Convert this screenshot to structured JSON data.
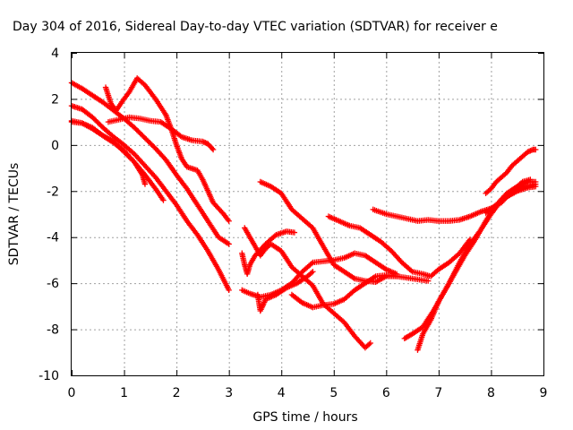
{
  "chart_data": {
    "type": "scatter",
    "title": "Day 304 of 2016, Sidereal Day-to-day VTEC variation (SDTVAR) for receiver e",
    "xlabel": "GPS time / hours",
    "ylabel": "SDTVAR / TECUs",
    "xlim": [
      0,
      9
    ],
    "ylim": [
      -10,
      4
    ],
    "xticks": [
      "0",
      "1",
      "2",
      "3",
      "4",
      "5",
      "6",
      "7",
      "8",
      "9"
    ],
    "yticks": [
      "-10",
      "-8",
      "-6",
      "-4",
      "-2",
      "0",
      "2",
      "4"
    ],
    "grid": true,
    "marker": "plus",
    "colors": {
      "series": "#ff0000",
      "axis": "#000000",
      "grid": "#a0a0a0"
    },
    "series": [
      {
        "points": [
          [
            0.0,
            2.7
          ],
          [
            0.2,
            2.45
          ],
          [
            0.4,
            2.15
          ],
          [
            0.6,
            1.85
          ],
          [
            0.8,
            1.5
          ],
          [
            1.0,
            1.15
          ],
          [
            1.2,
            0.75
          ],
          [
            1.4,
            0.3
          ],
          [
            1.6,
            -0.15
          ],
          [
            1.8,
            -0.65
          ],
          [
            2.0,
            -1.3
          ],
          [
            2.2,
            -1.9
          ],
          [
            2.4,
            -2.6
          ],
          [
            2.6,
            -3.3
          ],
          [
            2.8,
            -4.0
          ],
          [
            3.0,
            -4.3
          ]
        ]
      },
      {
        "points": [
          [
            0.0,
            1.7
          ],
          [
            0.2,
            1.55
          ],
          [
            0.4,
            1.2
          ],
          [
            0.6,
            0.75
          ],
          [
            0.8,
            0.35
          ],
          [
            1.0,
            0.0
          ],
          [
            1.2,
            -0.4
          ],
          [
            1.4,
            -0.9
          ],
          [
            1.6,
            -1.4
          ],
          [
            1.8,
            -2.0
          ],
          [
            2.0,
            -2.6
          ],
          [
            2.2,
            -3.3
          ],
          [
            2.4,
            -3.9
          ],
          [
            2.6,
            -4.6
          ],
          [
            2.8,
            -5.4
          ],
          [
            3.0,
            -6.3
          ]
        ]
      },
      {
        "points": [
          [
            0.0,
            1.0
          ],
          [
            0.2,
            0.95
          ],
          [
            0.4,
            0.7
          ],
          [
            0.6,
            0.4
          ],
          [
            0.8,
            0.15
          ],
          [
            1.0,
            -0.3
          ],
          [
            1.2,
            -0.75
          ],
          [
            1.35,
            -1.3
          ],
          [
            1.4,
            -1.7
          ]
        ]
      },
      {
        "points": [
          [
            0.0,
            1.05
          ],
          [
            0.2,
            0.95
          ],
          [
            0.4,
            0.75
          ],
          [
            0.6,
            0.4
          ],
          [
            0.8,
            0.1
          ],
          [
            1.0,
            -0.25
          ],
          [
            1.2,
            -0.75
          ],
          [
            1.4,
            -1.3
          ],
          [
            1.6,
            -1.9
          ],
          [
            1.75,
            -2.4
          ]
        ]
      },
      {
        "points": [
          [
            0.65,
            2.5
          ],
          [
            0.75,
            1.8
          ],
          [
            0.85,
            1.5
          ],
          [
            1.0,
            2.0
          ],
          [
            1.1,
            2.3
          ],
          [
            1.25,
            2.9
          ],
          [
            1.4,
            2.6
          ],
          [
            1.6,
            2.0
          ],
          [
            1.8,
            1.3
          ],
          [
            1.9,
            0.7
          ],
          [
            2.0,
            0.0
          ],
          [
            2.1,
            -0.6
          ],
          [
            2.2,
            -0.95
          ],
          [
            2.4,
            -1.1
          ],
          [
            2.5,
            -1.5
          ],
          [
            2.7,
            -2.5
          ],
          [
            2.9,
            -3.0
          ],
          [
            3.0,
            -3.3
          ]
        ]
      },
      {
        "points": [
          [
            0.7,
            1.0
          ],
          [
            0.9,
            1.1
          ],
          [
            1.1,
            1.2
          ],
          [
            1.3,
            1.15
          ],
          [
            1.5,
            1.05
          ],
          [
            1.7,
            1.0
          ],
          [
            1.9,
            0.7
          ],
          [
            2.1,
            0.35
          ],
          [
            2.3,
            0.2
          ],
          [
            2.5,
            0.15
          ],
          [
            2.6,
            0.05
          ],
          [
            2.7,
            -0.2
          ]
        ]
      },
      {
        "points": [
          [
            3.25,
            -4.7
          ],
          [
            3.3,
            -5.2
          ],
          [
            3.35,
            -5.6
          ],
          [
            3.4,
            -5.2
          ],
          [
            3.5,
            -4.8
          ],
          [
            3.7,
            -4.3
          ],
          [
            3.9,
            -3.9
          ],
          [
            4.1,
            -3.75
          ],
          [
            4.25,
            -3.8
          ]
        ]
      },
      {
        "points": [
          [
            3.3,
            -3.6
          ],
          [
            3.4,
            -4.0
          ],
          [
            3.5,
            -4.4
          ],
          [
            3.6,
            -4.8
          ],
          [
            3.7,
            -4.5
          ],
          [
            3.8,
            -4.3
          ],
          [
            4.0,
            -4.6
          ],
          [
            4.2,
            -5.3
          ],
          [
            4.4,
            -5.7
          ],
          [
            4.6,
            -6.1
          ],
          [
            4.8,
            -6.9
          ],
          [
            5.0,
            -7.3
          ],
          [
            5.2,
            -7.7
          ],
          [
            5.4,
            -8.3
          ],
          [
            5.6,
            -8.8
          ],
          [
            5.7,
            -8.6
          ]
        ]
      },
      {
        "points": [
          [
            3.25,
            -6.3
          ],
          [
            3.4,
            -6.45
          ],
          [
            3.6,
            -6.6
          ],
          [
            3.8,
            -6.5
          ],
          [
            4.0,
            -6.3
          ],
          [
            4.2,
            -6.0
          ],
          [
            4.4,
            -5.5
          ],
          [
            4.6,
            -5.1
          ],
          [
            4.8,
            -5.05
          ],
          [
            5.0,
            -5.0
          ],
          [
            5.2,
            -4.9
          ],
          [
            5.4,
            -4.7
          ],
          [
            5.6,
            -4.8
          ],
          [
            5.8,
            -5.1
          ],
          [
            6.0,
            -5.4
          ],
          [
            6.2,
            -5.6
          ]
        ]
      },
      {
        "points": [
          [
            3.55,
            -6.5
          ],
          [
            3.6,
            -7.2
          ],
          [
            3.7,
            -6.7
          ],
          [
            3.9,
            -6.5
          ],
          [
            4.1,
            -6.2
          ],
          [
            4.3,
            -6.0
          ],
          [
            4.5,
            -5.7
          ],
          [
            4.6,
            -5.5
          ]
        ]
      },
      {
        "points": [
          [
            3.6,
            -1.6
          ],
          [
            3.8,
            -1.8
          ],
          [
            4.0,
            -2.1
          ],
          [
            4.2,
            -2.8
          ],
          [
            4.4,
            -3.2
          ],
          [
            4.6,
            -3.6
          ],
          [
            4.8,
            -4.4
          ],
          [
            5.0,
            -5.2
          ],
          [
            5.2,
            -5.5
          ],
          [
            5.4,
            -5.8
          ],
          [
            5.6,
            -5.9
          ],
          [
            5.8,
            -5.95
          ],
          [
            6.0,
            -5.7
          ],
          [
            6.2,
            -5.7
          ]
        ]
      },
      {
        "points": [
          [
            4.2,
            -6.5
          ],
          [
            4.4,
            -6.85
          ],
          [
            4.6,
            -7.05
          ],
          [
            4.8,
            -6.95
          ],
          [
            5.0,
            -6.9
          ],
          [
            5.2,
            -6.7
          ],
          [
            5.4,
            -6.3
          ],
          [
            5.6,
            -6.0
          ],
          [
            5.8,
            -5.7
          ],
          [
            6.0,
            -5.65
          ],
          [
            6.2,
            -5.7
          ],
          [
            6.5,
            -5.8
          ],
          [
            6.8,
            -5.9
          ]
        ]
      },
      {
        "points": [
          [
            4.9,
            -3.1
          ],
          [
            5.1,
            -3.3
          ],
          [
            5.3,
            -3.5
          ],
          [
            5.5,
            -3.6
          ],
          [
            5.7,
            -3.9
          ],
          [
            5.9,
            -4.2
          ],
          [
            6.1,
            -4.6
          ],
          [
            6.3,
            -5.1
          ],
          [
            6.5,
            -5.5
          ],
          [
            6.7,
            -5.6
          ],
          [
            6.85,
            -5.7
          ],
          [
            7.0,
            -5.4
          ],
          [
            7.2,
            -5.1
          ],
          [
            7.4,
            -4.7
          ],
          [
            7.6,
            -4.1
          ]
        ]
      },
      {
        "points": [
          [
            5.75,
            -2.8
          ],
          [
            6.0,
            -3.0
          ],
          [
            6.2,
            -3.1
          ],
          [
            6.4,
            -3.2
          ],
          [
            6.6,
            -3.3
          ],
          [
            6.8,
            -3.25
          ],
          [
            7.0,
            -3.3
          ],
          [
            7.2,
            -3.3
          ],
          [
            7.4,
            -3.25
          ],
          [
            7.6,
            -3.1
          ],
          [
            7.8,
            -2.9
          ],
          [
            8.0,
            -2.75
          ],
          [
            8.2,
            -2.5
          ],
          [
            8.4,
            -2.0
          ],
          [
            8.6,
            -1.6
          ],
          [
            8.75,
            -1.5
          ]
        ]
      },
      {
        "points": [
          [
            6.35,
            -8.4
          ],
          [
            6.5,
            -8.2
          ],
          [
            6.7,
            -7.9
          ],
          [
            6.9,
            -7.2
          ],
          [
            7.1,
            -6.4
          ],
          [
            7.3,
            -5.6
          ],
          [
            7.5,
            -4.8
          ],
          [
            7.7,
            -4.1
          ],
          [
            7.9,
            -3.3
          ],
          [
            8.1,
            -2.6
          ],
          [
            8.3,
            -2.1
          ],
          [
            8.5,
            -1.8
          ],
          [
            8.7,
            -1.6
          ],
          [
            8.85,
            -1.6
          ]
        ]
      },
      {
        "points": [
          [
            6.6,
            -8.9
          ],
          [
            6.7,
            -8.2
          ],
          [
            6.85,
            -7.6
          ],
          [
            7.0,
            -6.8
          ],
          [
            7.2,
            -6.0
          ],
          [
            7.4,
            -5.1
          ],
          [
            7.6,
            -4.3
          ],
          [
            7.8,
            -3.7
          ],
          [
            8.0,
            -3.0
          ],
          [
            8.2,
            -2.4
          ],
          [
            8.4,
            -2.1
          ],
          [
            8.6,
            -1.85
          ],
          [
            8.85,
            -1.7
          ]
        ]
      },
      {
        "points": [
          [
            7.9,
            -2.1
          ],
          [
            8.0,
            -1.9
          ],
          [
            8.1,
            -1.6
          ],
          [
            8.3,
            -1.2
          ],
          [
            8.4,
            -0.9
          ],
          [
            8.5,
            -0.7
          ],
          [
            8.6,
            -0.5
          ],
          [
            8.7,
            -0.3
          ],
          [
            8.8,
            -0.2
          ],
          [
            8.85,
            -0.2
          ]
        ]
      },
      {
        "points": [
          [
            7.9,
            -2.95
          ],
          [
            8.1,
            -2.6
          ],
          [
            8.3,
            -2.25
          ],
          [
            8.5,
            -2.0
          ],
          [
            8.7,
            -1.85
          ],
          [
            8.85,
            -1.8
          ]
        ]
      }
    ]
  }
}
